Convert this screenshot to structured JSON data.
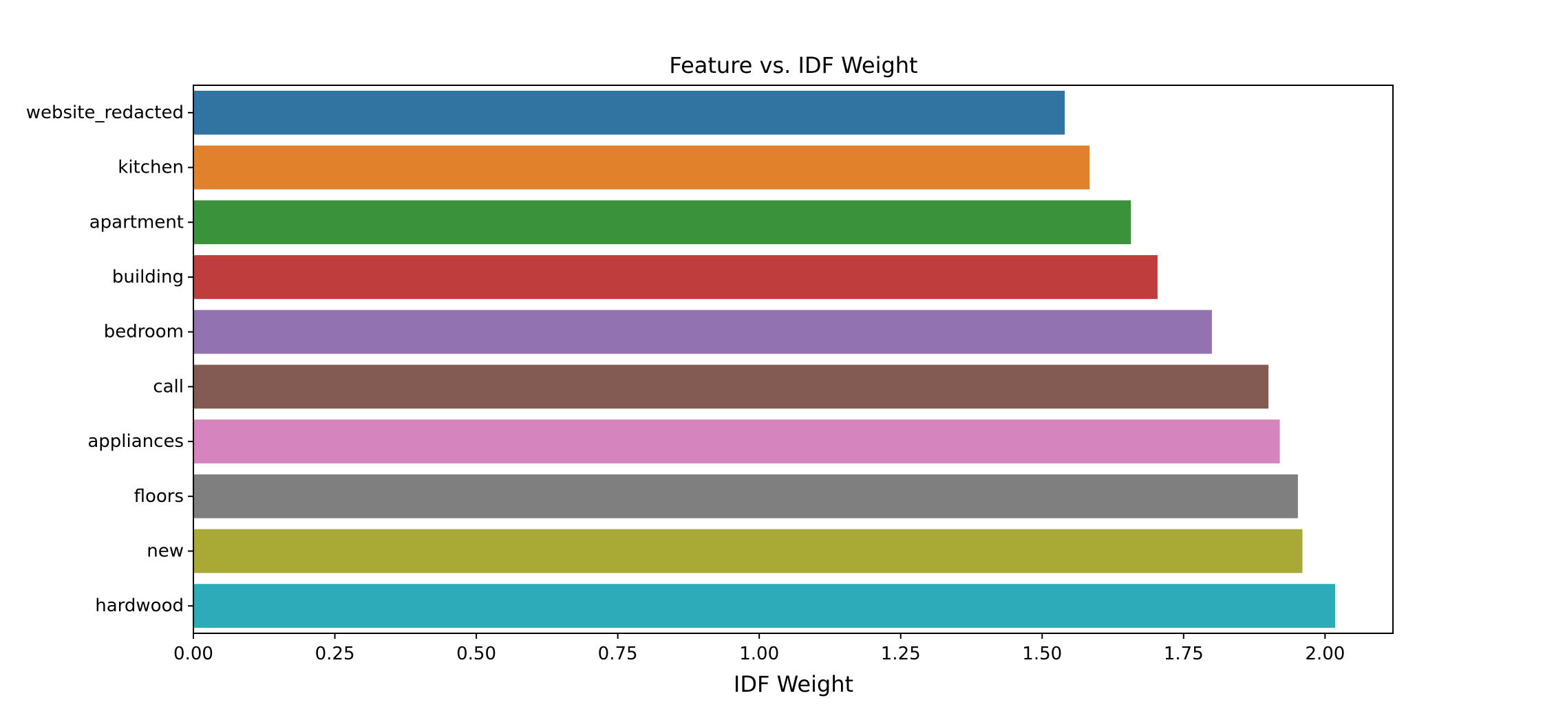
{
  "chart_data": {
    "type": "bar",
    "orientation": "horizontal",
    "title": "Feature vs. IDF Weight",
    "xlabel": "IDF Weight",
    "ylabel": "",
    "xlim": [
      0,
      2.12
    ],
    "xticks": [
      0.0,
      0.25,
      0.5,
      0.75,
      1.0,
      1.25,
      1.5,
      1.75,
      2.0
    ],
    "xtick_labels": [
      "0.00",
      "0.25",
      "0.50",
      "0.75",
      "1.00",
      "1.25",
      "1.50",
      "1.75",
      "2.00"
    ],
    "categories": [
      "website_redacted",
      "kitchen",
      "apartment",
      "building",
      "bedroom",
      "call",
      "appliances",
      "floors",
      "new",
      "hardwood"
    ],
    "values": [
      1.54,
      1.584,
      1.657,
      1.704,
      1.8,
      1.9,
      1.92,
      1.952,
      1.96,
      2.018
    ],
    "colors": [
      "#3274a1",
      "#e1812c",
      "#3a923a",
      "#c03d3e",
      "#9372b2",
      "#845b53",
      "#d684bd",
      "#7f7f7f",
      "#a9aa35",
      "#2eabb8"
    ],
    "grid": false,
    "legend": "none"
  }
}
